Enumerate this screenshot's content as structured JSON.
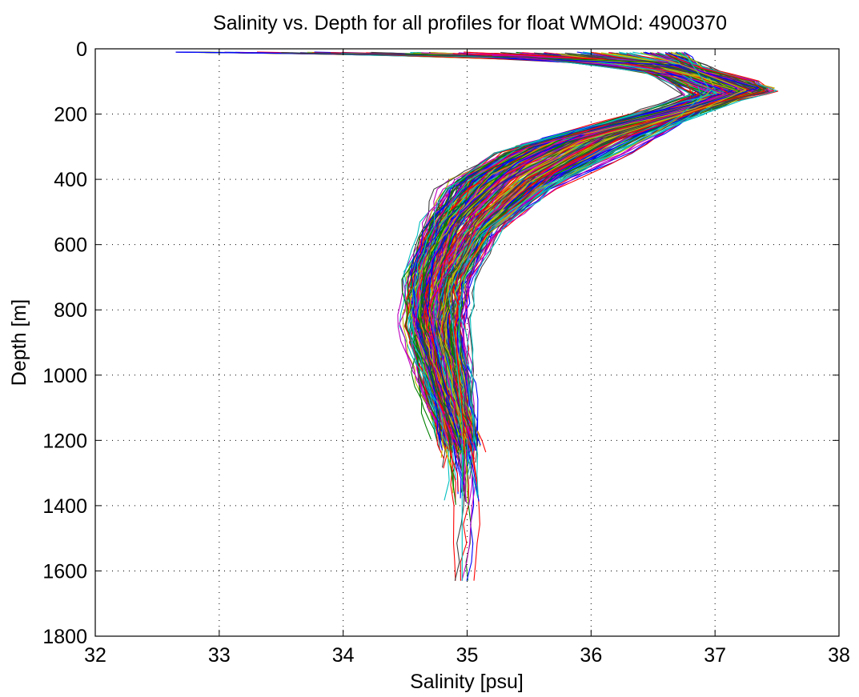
{
  "chart_data": {
    "type": "line",
    "title": "Salinity vs. Depth for all profiles for float WMOId: 4900370",
    "xlabel": "Salinity [psu]",
    "ylabel": "Depth [m]",
    "xlim": [
      32,
      38
    ],
    "ylim": [
      0,
      1800
    ],
    "y_reversed": true,
    "x_ticks": [
      32,
      33,
      34,
      35,
      36,
      37,
      38
    ],
    "y_ticks": [
      0,
      200,
      400,
      600,
      800,
      1000,
      1200,
      1400,
      1600,
      1800
    ],
    "grid": true,
    "legend": "none",
    "series_colors": [
      "#0000ff",
      "#008000",
      "#ff0000",
      "#00bfbf",
      "#bf00bf",
      "#bfbf00",
      "#404040"
    ],
    "profile_count_approx": 280,
    "representative_series": [
      {
        "x": [
          32.65,
          35.0,
          36.7,
          37.35,
          36.9,
          36.0,
          35.4,
          34.95,
          34.72,
          34.68,
          34.8,
          34.95
        ],
        "y": [
          10,
          20,
          50,
          120,
          170,
          250,
          350,
          500,
          650,
          800,
          1000,
          1230
        ]
      },
      {
        "x": [
          34.5,
          36.5,
          36.9,
          37.2,
          36.8,
          35.8,
          35.2,
          34.85,
          34.65,
          34.62,
          34.75,
          34.92
        ],
        "y": [
          15,
          40,
          80,
          130,
          180,
          270,
          380,
          520,
          680,
          850,
          1050,
          1190
        ]
      },
      {
        "x": [
          36.6,
          36.9,
          37.3,
          37.4,
          37.0,
          36.3,
          35.7,
          35.2,
          34.95,
          34.9,
          34.96,
          34.98
        ],
        "y": [
          15,
          60,
          100,
          130,
          165,
          260,
          380,
          540,
          700,
          860,
          1100,
          1240
        ]
      },
      {
        "x": [
          36.75,
          36.8,
          36.95,
          36.85,
          36.7,
          36.2,
          35.6,
          35.05,
          34.85,
          34.9,
          34.96,
          34.96,
          34.96
        ],
        "y": [
          10,
          40,
          120,
          160,
          210,
          320,
          430,
          580,
          750,
          900,
          1150,
          1400,
          1630
        ]
      },
      {
        "x": [
          35.2,
          36.2,
          36.7,
          37.1,
          36.7,
          35.5,
          35.0,
          34.75,
          34.62,
          34.58,
          34.7,
          34.86
        ],
        "y": [
          20,
          50,
          90,
          140,
          190,
          300,
          400,
          530,
          700,
          850,
          1020,
          1170
        ]
      },
      {
        "x": [
          36.4,
          36.7,
          37.0,
          37.25,
          36.95,
          36.1,
          35.5,
          35.1,
          34.85,
          34.78,
          34.9,
          34.97
        ],
        "y": [
          12,
          45,
          90,
          125,
          175,
          280,
          410,
          560,
          720,
          880,
          1060,
          1200
        ]
      },
      {
        "x": [
          33.5,
          35.5,
          36.5,
          36.9,
          36.4,
          35.3,
          34.9,
          34.72,
          34.64,
          34.66,
          34.8,
          34.93
        ],
        "y": [
          12,
          25,
          70,
          140,
          200,
          320,
          430,
          580,
          740,
          900,
          1080,
          1215
        ]
      }
    ]
  }
}
